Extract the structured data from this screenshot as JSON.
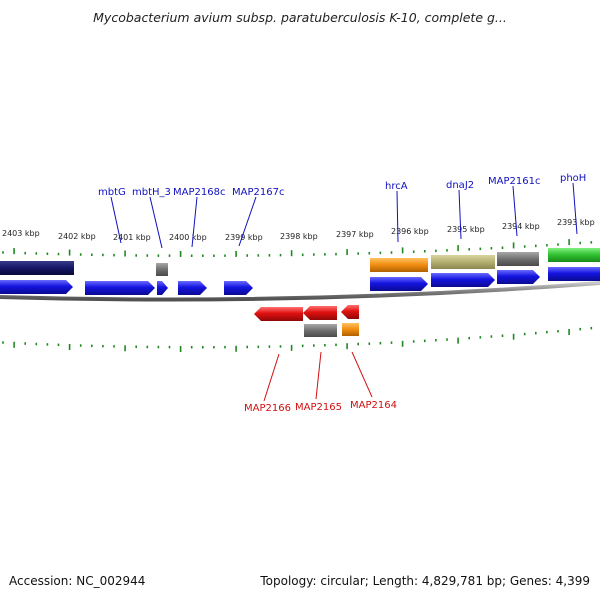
{
  "title": "Mycobacterium avium subsp. paratuberculosis K-10, complete g...",
  "footer": {
    "accession": "Accession: NC_002944",
    "topology": "Topology: circular; Length: 4,829,781 bp; Genes: 4,399"
  },
  "colors": {
    "forward_gene": "#1414e0",
    "reverse_gene": "#e01010",
    "forward_label": "#1010c0",
    "reverse_label": "#d01010",
    "tick": "#228822",
    "backbone": "#888888",
    "gene_navy": "#151566",
    "gene_gray": "#707070",
    "gene_orange": "#f08c10",
    "gene_khaki": "#b4b070",
    "gene_green": "#30c030"
  },
  "kbp_labels": [
    "2403 kbp",
    "2402 kbp",
    "2401 kbp",
    "2400 kbp",
    "2399 kbp",
    "2398 kbp",
    "2397 kbp",
    "2396 kbp",
    "2395 kbp",
    "2394 kbp",
    "2393 kbp"
  ],
  "forward_labels": [
    "mbtG",
    "mbtH_3",
    "MAP2168c",
    "MAP2167c",
    "hrcA",
    "dnaJ2",
    "MAP2161c",
    "phoH"
  ],
  "reverse_labels": [
    "MAP2166",
    "MAP2165",
    "MAP2164"
  ]
}
